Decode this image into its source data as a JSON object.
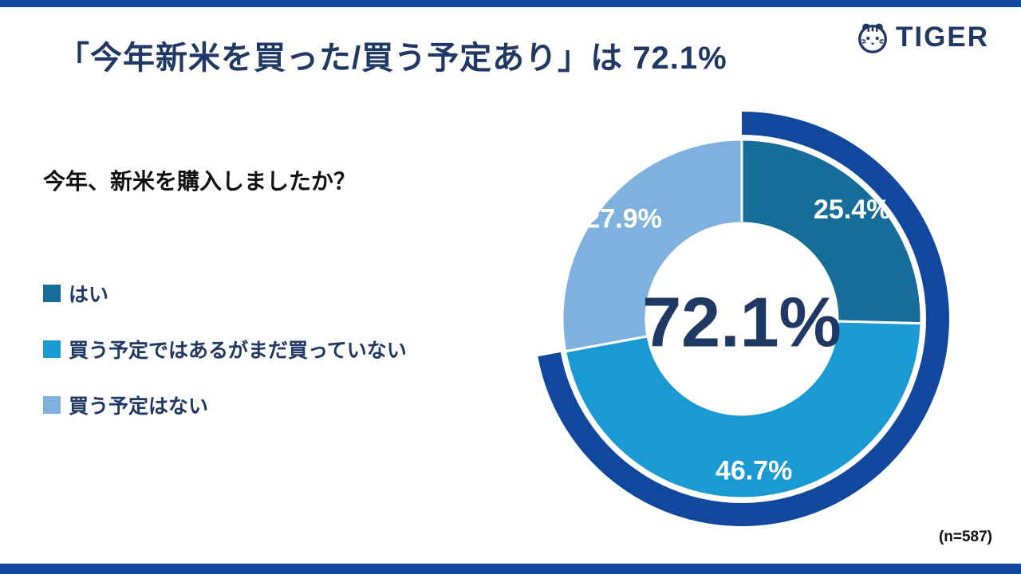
{
  "page": {
    "background": "#ffffff",
    "accent_navy": "#11489e",
    "text_navy": "#1f3864"
  },
  "header": {
    "title": "「今年新米を買った/買う予定あり」は 72.1%",
    "brand": "TIGER"
  },
  "question": "今年、新米を購入しましたか？",
  "legend": [
    {
      "label": "はい",
      "color": "#176d99"
    },
    {
      "label": "買う予定ではあるがまだ買っていない",
      "color": "#1a9ad2"
    },
    {
      "label": "買う予定はない",
      "color": "#7fb1de"
    }
  ],
  "footnote": "(n=587)",
  "chart_data": {
    "type": "pie",
    "subtype": "donut",
    "title": "「今年新米を買った/買う予定あり」は 72.1%",
    "question": "今年、新米を購入しましたか？",
    "center_label": "72.1%",
    "sample_size": 587,
    "start_angle_deg": 0,
    "direction": "clockwise",
    "legend_position": "left",
    "segments": [
      {
        "label": "はい",
        "value": 25.4,
        "display": "25.4%",
        "color": "#176d99"
      },
      {
        "label": "買う予定ではあるがまだ買っていない",
        "value": 46.7,
        "display": "46.7%",
        "color": "#1a9ad2"
      },
      {
        "label": "買う予定はない",
        "value": 27.9,
        "display": "27.9%",
        "color": "#7fb1de"
      }
    ],
    "highlight_ring": {
      "label": "今年新米を買った/買う予定あり",
      "value": 72.1,
      "display": "72.1%",
      "color": "#11489e"
    }
  }
}
